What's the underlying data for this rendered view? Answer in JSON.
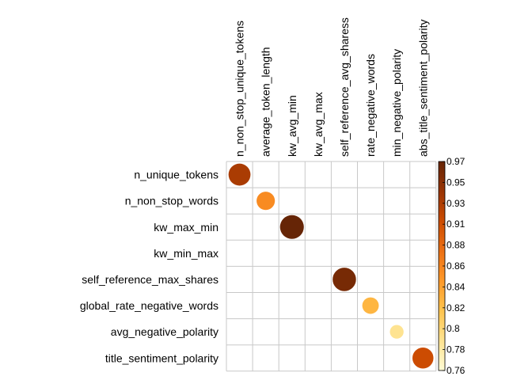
{
  "chart_data": {
    "type": "heatmap",
    "title": "",
    "rows": [
      "n_unique_tokens",
      "n_non_stop_words",
      "kw_max_min",
      "kw_min_max",
      "self_reference_max_shares",
      "global_rate_negative_words",
      "avg_negative_polarity",
      "title_sentiment_polarity"
    ],
    "columns": [
      "n_non_stop_unique_tokens",
      "average_token_length",
      "kw_avg_min",
      "kw_avg_max",
      "self_reference_avg_sharess",
      "rate_negative_words",
      "min_negative_polarity",
      "abs_title_sentiment_polarity"
    ],
    "cells": [
      {
        "row": 0,
        "col": 0,
        "value": 0.93
      },
      {
        "row": 1,
        "col": 1,
        "value": 0.86
      },
      {
        "row": 2,
        "col": 2,
        "value": 0.97
      },
      {
        "row": 4,
        "col": 4,
        "value": 0.96
      },
      {
        "row": 5,
        "col": 5,
        "value": 0.83
      },
      {
        "row": 6,
        "col": 6,
        "value": 0.79
      },
      {
        "row": 7,
        "col": 7,
        "value": 0.91
      }
    ],
    "colorbar": {
      "min": 0.76,
      "max": 0.97,
      "ticks": [
        "0.97",
        "0.95",
        "0.93",
        "0.91",
        "0.88",
        "0.86",
        "0.84",
        "0.82",
        "0.8",
        "0.78",
        "0.76"
      ],
      "colors": [
        "#fffbd5",
        "#fee391",
        "#fec44f",
        "#fe9929",
        "#ec7014",
        "#cc4c02",
        "#993404",
        "#662506"
      ]
    },
    "grid": true,
    "legend_position": "right"
  }
}
